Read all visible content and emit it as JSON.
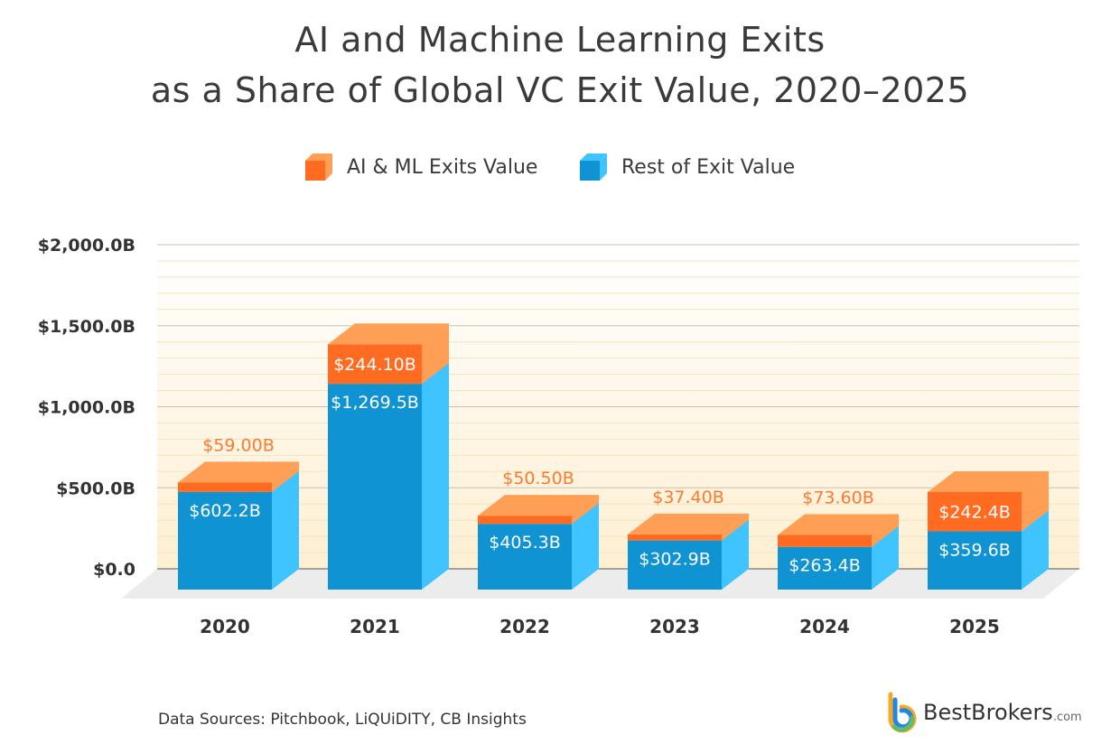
{
  "chart_data": {
    "type": "bar",
    "stacked": true,
    "title": [
      "AI and Machine Learning Exits",
      "as a Share of Global VC Exit Value, 2020–2025"
    ],
    "categories": [
      "2020",
      "2021",
      "2022",
      "2023",
      "2024",
      "2025"
    ],
    "series": [
      {
        "name": "Rest of Exit Value",
        "color": "#0f93d3",
        "values": [
          602.2,
          1269.5,
          405.3,
          302.9,
          263.4,
          359.6
        ],
        "labels": [
          "$602.2B",
          "$1,269.5B",
          "$405.3B",
          "$302.9B",
          "$263.4B",
          "$359.6B"
        ]
      },
      {
        "name": "AI & ML Exits Value",
        "color": "#ff6b21",
        "values": [
          59.0,
          244.1,
          50.5,
          37.4,
          73.6,
          242.4
        ],
        "labels": [
          "$59.00B",
          "$244.10B",
          "$50.50B",
          "$37.40B",
          "$73.60B",
          "$242.4B"
        ]
      }
    ],
    "ylim": [
      0,
      2000
    ],
    "yticks": [
      0,
      500,
      1000,
      1500,
      2000
    ],
    "ytick_labels": [
      "$0.0",
      "$500.0B",
      "$1,000.0B",
      "$1,500.0B",
      "$2,000.0B"
    ],
    "grid": true,
    "legend": "top-center"
  },
  "legend": {
    "ai": "AI & ML Exits Value",
    "rest": "Rest of Exit Value"
  },
  "source": "Data Sources: Pitchbook, LiQUiDITY, CB Insights",
  "logo": {
    "name": "BestBrokers",
    "suffix": ".com"
  }
}
